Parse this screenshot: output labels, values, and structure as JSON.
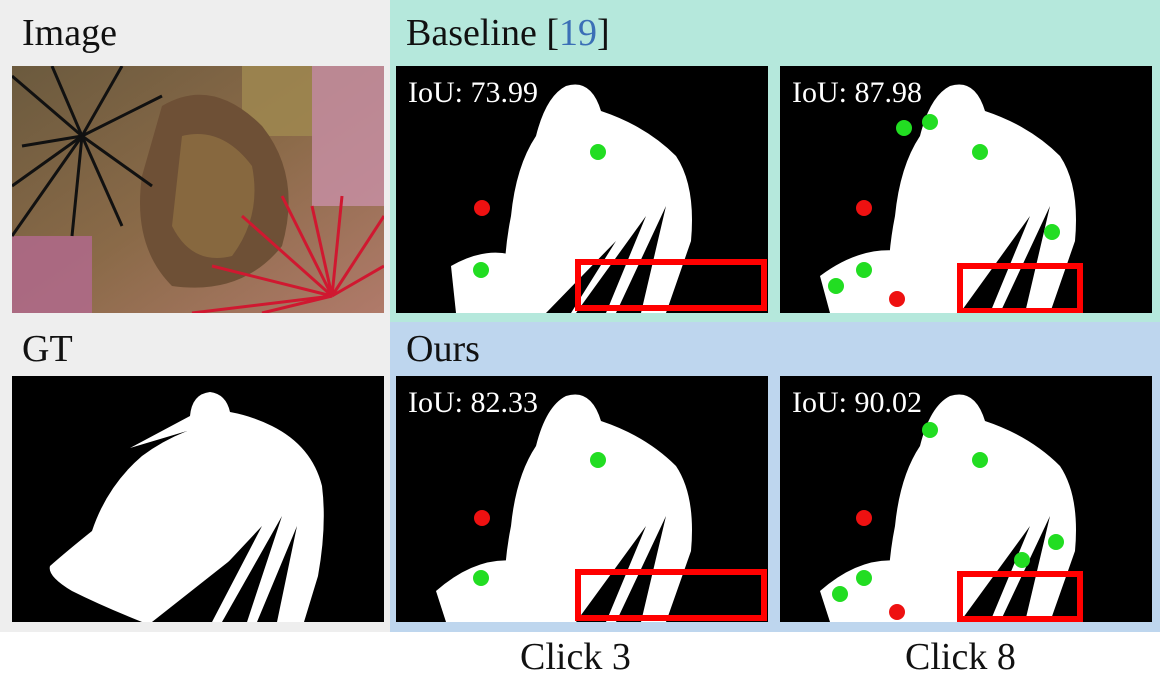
{
  "labels": {
    "image": "Image",
    "gt": "GT",
    "baseline": "Baseline [",
    "baseline_ref": "19",
    "baseline_close": "]",
    "ours": "Ours"
  },
  "iou": {
    "baseline_click3": "IoU: 73.99",
    "baseline_click8": "IoU: 87.98",
    "ours_click3": "IoU: 82.33",
    "ours_click8": "IoU: 90.02"
  },
  "captions": {
    "click3": "Click 3",
    "click8": "Click 8"
  },
  "colors": {
    "positive_click": "#22dd22",
    "negative_click": "#ee1111",
    "highlight_box": "#ff0000"
  }
}
